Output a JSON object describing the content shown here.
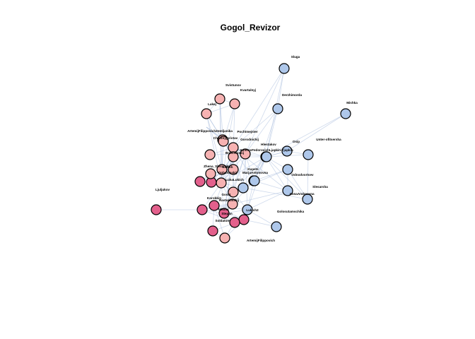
{
  "title": "Gogol_Revizor",
  "colors": {
    "blue": "#aec7ea",
    "pink": "#f6b2b2",
    "magenta": "#e3608c",
    "edge": "#a8bcdc",
    "stroke": "#000000"
  },
  "nodes": [
    {
      "label": "Sluga",
      "group": "blue"
    },
    {
      "label": "Svistunov",
      "group": "pink"
    },
    {
      "label": "Kvartalnyj",
      "group": "pink"
    },
    {
      "label": "Lakej",
      "group": "pink"
    },
    {
      "label": "Derzhimorda",
      "group": "blue"
    },
    {
      "label": "Mishka",
      "group": "blue"
    },
    {
      "label": "ArtemijFilippovichZemljanika",
      "group": "none"
    },
    {
      "label": "Pochtmejster",
      "group": "pink"
    },
    {
      "label": "Chastnyjpristav",
      "group": "pink"
    },
    {
      "label": "Gorodnichij",
      "group": "pink"
    },
    {
      "label": "Hlestakov",
      "group": "blue"
    },
    {
      "label": "Osip",
      "group": "blue"
    },
    {
      "label": "Unter-ofitsersha",
      "group": "blue"
    },
    {
      "label": "AmmosFedorovichLjapkin-Tjapkin",
      "group": "pink"
    },
    {
      "label": "Bobchinskij",
      "group": "pink"
    },
    {
      "label": "Zhena_Slesarsha",
      "group": "pink"
    },
    {
      "label": "Lukich",
      "group": "pink"
    },
    {
      "label": "Dobchinskij",
      "group": "pink"
    },
    {
      "label": "Kupets",
      "group": "blue"
    },
    {
      "label": "MarjaAntonovna",
      "group": "blue"
    },
    {
      "label": "Odnodvortsev",
      "group": "blue"
    },
    {
      "label": "LukaLukich",
      "group": "pink"
    },
    {
      "label": "Slesarsha",
      "group": "blue"
    },
    {
      "label": "AnnaAndreevna",
      "group": "blue"
    },
    {
      "label": "Ljuljukov",
      "group": "magenta"
    },
    {
      "label": "Gost1",
      "group": "pink"
    },
    {
      "label": "Rastakovskij",
      "group": "magenta"
    },
    {
      "label": "Korobkin",
      "group": "magenta"
    },
    {
      "label": "Lukich2",
      "group": "blue"
    },
    {
      "label": "Golosutamschika",
      "group": "blue"
    },
    {
      "label": "Nikolaj",
      "group": "magenta"
    },
    {
      "label": "Stepan",
      "group": "magenta"
    },
    {
      "label": "Soldatom",
      "group": "magenta"
    },
    {
      "label": "ArtemijFilippovich",
      "group": "pink"
    },
    {
      "label": "",
      "group": "magenta"
    },
    {
      "label": "",
      "group": "magenta"
    },
    {
      "label": "",
      "group": "pink"
    },
    {
      "label": "",
      "group": "magenta"
    },
    {
      "label": "",
      "group": "blue"
    },
    {
      "label": "",
      "group": "blue"
    },
    {
      "label": "",
      "group": "pink"
    }
  ],
  "edges": [
    [
      0,
      4
    ],
    [
      0,
      9
    ],
    [
      0,
      10
    ],
    [
      0,
      13
    ],
    [
      4,
      9
    ],
    [
      4,
      10
    ],
    [
      4,
      13
    ],
    [
      4,
      19
    ],
    [
      5,
      10
    ],
    [
      5,
      11
    ],
    [
      11,
      12
    ],
    [
      11,
      10
    ],
    [
      12,
      10
    ],
    [
      12,
      22
    ],
    [
      1,
      2
    ],
    [
      1,
      3
    ],
    [
      1,
      8
    ],
    [
      1,
      15
    ],
    [
      1,
      17
    ],
    [
      2,
      3
    ],
    [
      2,
      8
    ],
    [
      2,
      14
    ],
    [
      2,
      17
    ],
    [
      3,
      8
    ],
    [
      3,
      15
    ],
    [
      3,
      17
    ],
    [
      3,
      14
    ],
    [
      8,
      9
    ],
    [
      8,
      13
    ],
    [
      8,
      14
    ],
    [
      8,
      17
    ],
    [
      8,
      15
    ],
    [
      9,
      13
    ],
    [
      9,
      14
    ],
    [
      9,
      17
    ],
    [
      9,
      10
    ],
    [
      9,
      18
    ],
    [
      9,
      19
    ],
    [
      9,
      21
    ],
    [
      9,
      23
    ],
    [
      9,
      26
    ],
    [
      10,
      13
    ],
    [
      10,
      14
    ],
    [
      10,
      17
    ],
    [
      10,
      18
    ],
    [
      10,
      19
    ],
    [
      10,
      20
    ],
    [
      10,
      21
    ],
    [
      10,
      22
    ],
    [
      10,
      23
    ],
    [
      10,
      28
    ],
    [
      10,
      11
    ],
    [
      13,
      14
    ],
    [
      13,
      17
    ],
    [
      13,
      15
    ],
    [
      13,
      21
    ],
    [
      13,
      18
    ],
    [
      13,
      19
    ],
    [
      13,
      26
    ],
    [
      13,
      28
    ],
    [
      14,
      15
    ],
    [
      14,
      17
    ],
    [
      14,
      16
    ],
    [
      14,
      21
    ],
    [
      14,
      26
    ],
    [
      14,
      30
    ],
    [
      15,
      16
    ],
    [
      15,
      17
    ],
    [
      15,
      34
    ],
    [
      15,
      35
    ],
    [
      16,
      17
    ],
    [
      16,
      36
    ],
    [
      17,
      21
    ],
    [
      17,
      18
    ],
    [
      17,
      25
    ],
    [
      17,
      26
    ],
    [
      17,
      27
    ],
    [
      18,
      19
    ],
    [
      18,
      20
    ],
    [
      18,
      22
    ],
    [
      19,
      20
    ],
    [
      19,
      23
    ],
    [
      19,
      25
    ],
    [
      19,
      28
    ],
    [
      20,
      22
    ],
    [
      20,
      23
    ],
    [
      21,
      25
    ],
    [
      21,
      26
    ],
    [
      21,
      28
    ],
    [
      23,
      25
    ],
    [
      23,
      28
    ],
    [
      24,
      27
    ],
    [
      25,
      26
    ],
    [
      25,
      27
    ],
    [
      25,
      30
    ],
    [
      26,
      27
    ],
    [
      26,
      28
    ],
    [
      26,
      30
    ],
    [
      26,
      31
    ],
    [
      27,
      30
    ],
    [
      27,
      32
    ],
    [
      28,
      29
    ],
    [
      28,
      30
    ],
    [
      28,
      31
    ],
    [
      29,
      31
    ],
    [
      30,
      31
    ],
    [
      30,
      32
    ],
    [
      30,
      33
    ],
    [
      31,
      32
    ],
    [
      31,
      33
    ],
    [
      31,
      37
    ],
    [
      32,
      33
    ],
    [
      34,
      35
    ],
    [
      34,
      36
    ],
    [
      35,
      36
    ],
    [
      35,
      14
    ],
    [
      36,
      21
    ],
    [
      37,
      30
    ],
    [
      38,
      10
    ],
    [
      38,
      19
    ],
    [
      39,
      10
    ],
    [
      39,
      18
    ],
    [
      40,
      13
    ],
    [
      40,
      9
    ],
    [
      7,
      9
    ],
    [
      7,
      13
    ],
    [
      7,
      14
    ],
    [
      6,
      8
    ],
    [
      6,
      9
    ],
    [
      6,
      13
    ],
    [
      16,
      34
    ],
    [
      33,
      37
    ]
  ]
}
